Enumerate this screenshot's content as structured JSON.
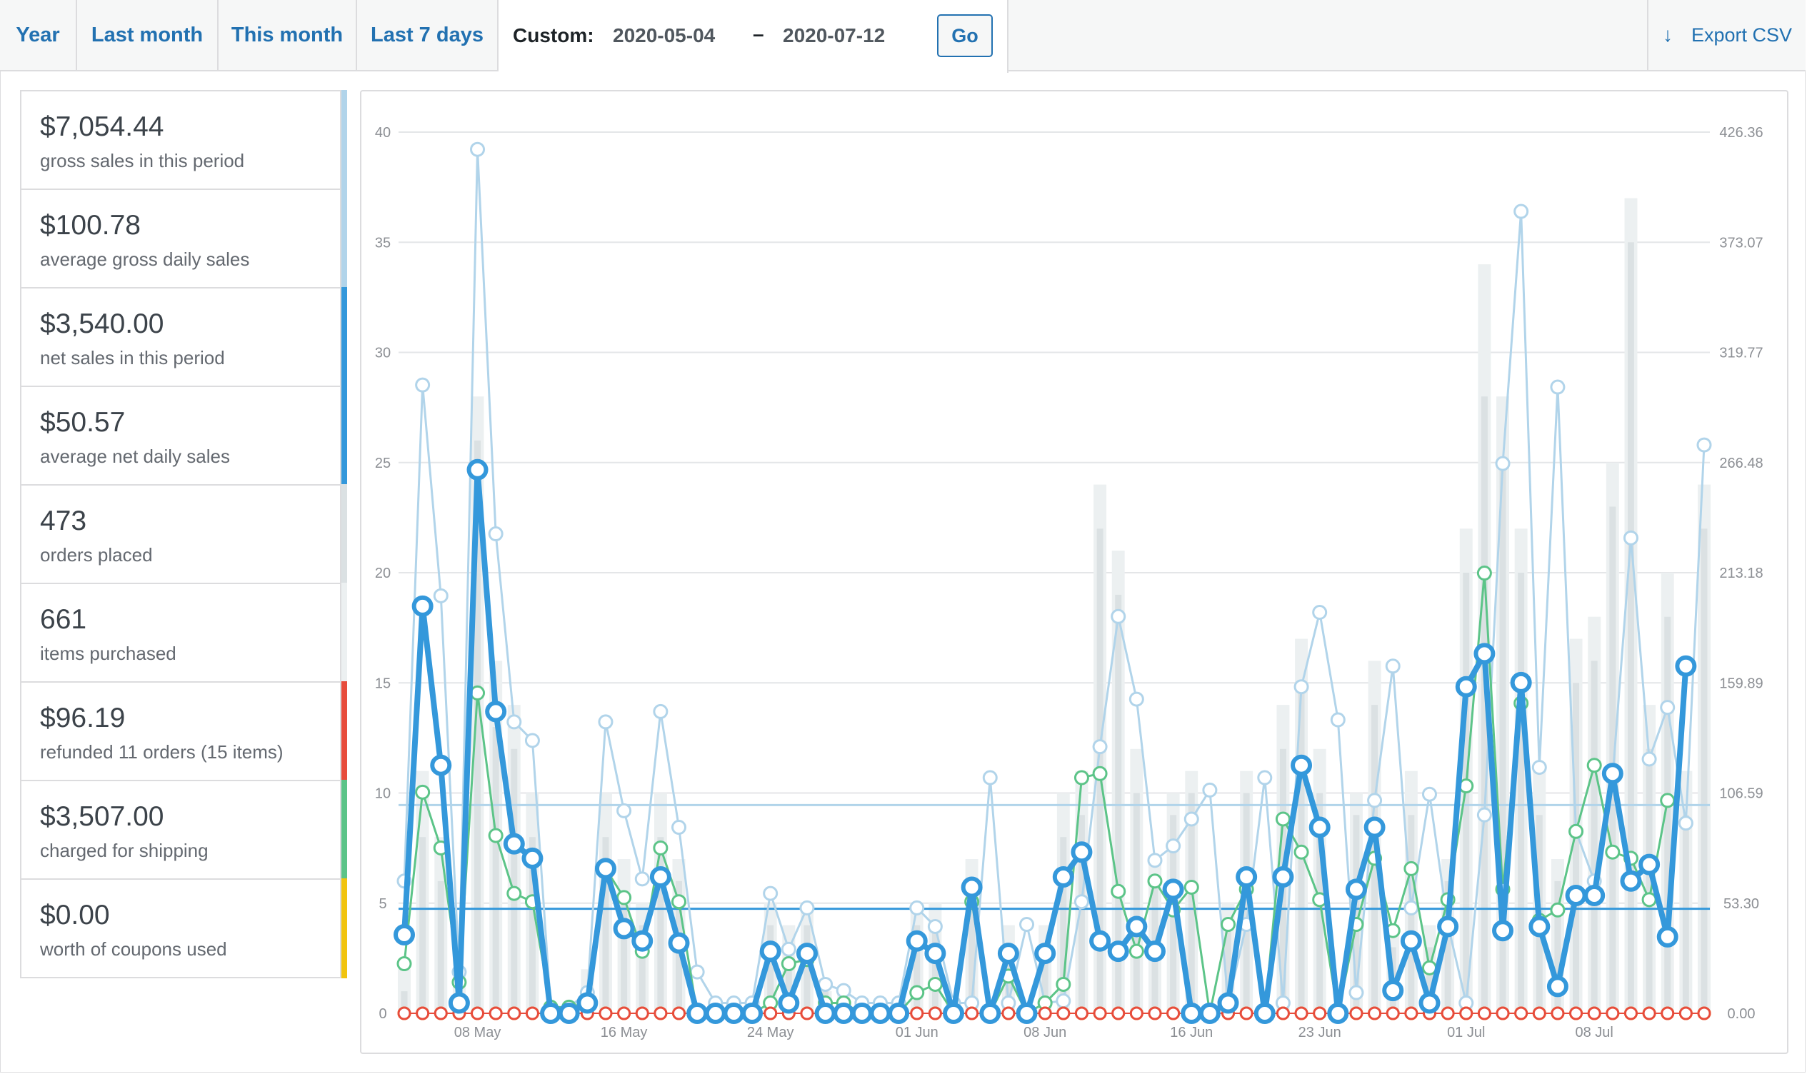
{
  "tabs": [
    "Year",
    "Last month",
    "This month",
    "Last 7 days"
  ],
  "custom": {
    "label": "Custom:",
    "from": "2020-05-04",
    "dash": "–",
    "to": "2020-07-12",
    "go": "Go"
  },
  "export_label": "Export CSV",
  "legend": [
    {
      "amount": "$7,054.44",
      "desc": "gross sales in this period",
      "color": "#b1d4ea"
    },
    {
      "amount": "$100.78",
      "desc": "average gross daily sales",
      "color": "#b1d4ea"
    },
    {
      "amount": "$3,540.00",
      "desc": "net sales in this period",
      "color": "#3498db"
    },
    {
      "amount": "$50.57",
      "desc": "average net daily sales",
      "color": "#3498db"
    },
    {
      "amount": "473",
      "desc": "orders placed",
      "color": "#dbe1e3"
    },
    {
      "amount": "661",
      "desc": "items purchased",
      "color": "#ecf0f1"
    },
    {
      "amount": "$96.19",
      "desc": "refunded 11 orders (15 items)",
      "color": "#e74c3c"
    },
    {
      "amount": "$3,507.00",
      "desc": "charged for shipping",
      "color": "#5cc488"
    },
    {
      "amount": "$0.00",
      "desc": "worth of coupons used",
      "color": "#f1c40f"
    }
  ],
  "chart_data": {
    "type": "line",
    "y_left_ticks": [
      "0",
      "5",
      "10",
      "15",
      "20",
      "25",
      "30",
      "35",
      "40"
    ],
    "y_left_range": [
      0,
      40
    ],
    "y_right_ticks": [
      "0.00",
      "53.30",
      "106.59",
      "159.89",
      "213.18",
      "266.48",
      "319.77",
      "373.07",
      "426.36"
    ],
    "y_right_range": [
      0,
      426.36
    ],
    "x_start": "2020-05-04",
    "x_end": "2020-07-12",
    "x_ticks": [
      {
        "label": "08 May",
        "day": 4
      },
      {
        "label": "16 May",
        "day": 12
      },
      {
        "label": "24 May",
        "day": 20
      },
      {
        "label": "01 Jun",
        "day": 28
      },
      {
        "label": "08 Jun",
        "day": 35
      },
      {
        "label": "16 Jun",
        "day": 43
      },
      {
        "label": "23 Jun",
        "day": 50
      },
      {
        "label": "01 Jul",
        "day": 58
      },
      {
        "label": "08 Jul",
        "day": 65
      }
    ],
    "grid": true,
    "legend": "left",
    "average_lines": {
      "gross_daily": 100.78,
      "net_daily": 50.57
    },
    "series": [
      {
        "name": "gross sales",
        "axis": "right",
        "color": "#b1d4ea",
        "values": [
          64,
          304,
          202,
          20,
          418,
          232,
          141,
          132,
          3,
          3,
          10,
          141,
          98,
          65,
          146,
          90,
          20,
          5,
          5,
          5,
          58,
          31,
          51,
          14,
          11,
          5,
          5,
          5,
          51,
          42,
          5,
          5,
          114,
          5,
          43,
          5,
          6,
          54,
          129,
          192,
          152,
          74,
          81,
          94,
          108,
          5,
          43,
          114,
          5,
          158,
          194,
          142,
          10,
          103,
          168,
          51,
          106,
          43,
          5,
          96,
          266,
          388,
          119,
          303,
          88,
          64,
          114,
          230,
          123,
          148,
          92,
          275
        ]
      },
      {
        "name": "net sales",
        "axis": "right",
        "color": "#3498db",
        "values": [
          38,
          197,
          120,
          5,
          263,
          146,
          82,
          75,
          0,
          0,
          5,
          70,
          41,
          35,
          66,
          34,
          0,
          0,
          0,
          0,
          30,
          5,
          29,
          0,
          0,
          0,
          0,
          0,
          35,
          29,
          0,
          61,
          0,
          29,
          0,
          29,
          66,
          78,
          35,
          30,
          42,
          30,
          60,
          0,
          0,
          5,
          66,
          0,
          66,
          120,
          90,
          0,
          60,
          90,
          11,
          35,
          5,
          42,
          158,
          174,
          40,
          160,
          42,
          13,
          57,
          57,
          116,
          64,
          72,
          37,
          168
        ]
      },
      {
        "name": "orders placed",
        "axis": "left",
        "color": "#dbe1e3",
        "values": [
          1,
          8,
          6,
          1,
          26,
          13,
          12,
          8,
          0,
          0,
          1,
          8,
          5,
          4,
          8,
          6,
          0,
          0,
          0,
          0,
          4,
          3,
          4,
          1,
          1,
          0,
          0,
          0,
          4,
          4,
          0,
          6,
          0,
          3,
          0,
          3,
          8,
          9,
          22,
          19,
          10,
          6,
          9,
          10,
          0,
          4,
          10,
          0,
          12,
          15,
          10,
          0,
          9,
          14,
          3,
          9,
          3,
          6,
          20,
          28,
          25,
          20,
          9,
          6,
          15,
          16,
          23,
          35,
          12,
          18,
          9,
          22
        ]
      },
      {
        "name": "items purchased",
        "axis": "left",
        "color": "#ecf0f1",
        "values": [
          2,
          11,
          8,
          2,
          28,
          16,
          14,
          10,
          0,
          0,
          2,
          10,
          7,
          5,
          10,
          7,
          0,
          0,
          0,
          0,
          5,
          4,
          5,
          1,
          1,
          0,
          0,
          0,
          5,
          5,
          0,
          7,
          0,
          4,
          0,
          4,
          10,
          11,
          24,
          21,
          12,
          7,
          10,
          11,
          0,
          5,
          11,
          0,
          14,
          17,
          12,
          0,
          10,
          16,
          4,
          11,
          4,
          7,
          22,
          34,
          28,
          22,
          11,
          7,
          17,
          18,
          25,
          37,
          14,
          20,
          11,
          24
        ]
      },
      {
        "name": "refunded",
        "axis": "right",
        "color": "#e74c3c",
        "values": [
          0,
          0,
          0,
          0,
          0,
          0,
          0,
          0,
          0,
          0,
          0,
          0,
          0,
          0,
          0,
          0,
          0,
          0,
          0,
          0,
          0,
          0,
          0,
          0,
          0,
          0,
          0,
          0,
          0,
          0,
          0,
          0,
          0,
          0,
          0,
          0,
          0,
          0,
          0,
          0,
          0,
          0,
          0,
          0,
          0,
          0,
          0,
          0,
          0,
          0,
          0,
          0,
          0,
          0,
          0,
          0,
          0,
          0,
          0,
          0,
          0,
          0,
          0,
          0,
          0,
          0,
          0,
          0,
          0,
          0,
          0,
          0
        ]
      },
      {
        "name": "charged for shipping",
        "axis": "right",
        "color": "#5cc488",
        "values": [
          24,
          107,
          80,
          15,
          155,
          86,
          58,
          54,
          3,
          3,
          5,
          70,
          56,
          30,
          80,
          54,
          0,
          0,
          0,
          0,
          5,
          24,
          26,
          5,
          5,
          0,
          0,
          0,
          10,
          14,
          0,
          54,
          0,
          18,
          0,
          5,
          14,
          114,
          116,
          59,
          30,
          64,
          50,
          61,
          0,
          43,
          60,
          0,
          94,
          78,
          55,
          0,
          43,
          75,
          40,
          70,
          22,
          55,
          110,
          213,
          60,
          150,
          45,
          50,
          88,
          120,
          78,
          75,
          55,
          103
        ]
      },
      {
        "name": "coupons",
        "axis": "right",
        "color": "#f1c40f",
        "values": [
          0,
          0,
          0,
          0,
          0,
          0,
          0,
          0,
          0,
          0,
          0,
          0,
          0,
          0,
          0,
          0,
          0,
          0,
          0,
          0,
          0,
          0,
          0,
          0,
          0,
          0,
          0,
          0,
          0,
          0,
          0,
          0,
          0,
          0,
          0,
          0,
          0,
          0,
          0,
          0,
          0,
          0,
          0,
          0,
          0,
          0,
          0,
          0,
          0,
          0,
          0,
          0,
          0,
          0,
          0,
          0,
          0,
          0,
          0,
          0,
          0,
          0,
          0,
          0,
          0,
          0,
          0,
          0,
          0,
          0,
          0,
          0
        ]
      }
    ]
  }
}
